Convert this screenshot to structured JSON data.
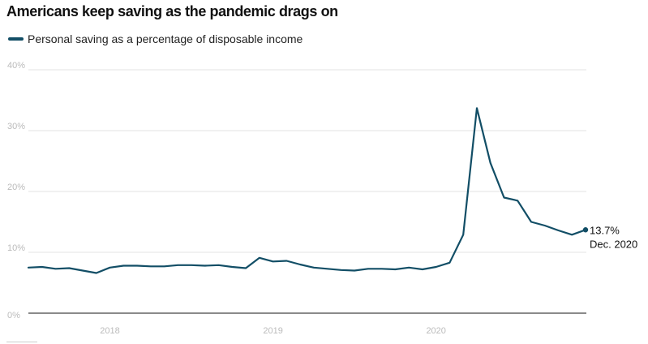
{
  "title": "Americans keep saving as the pandemic drags on",
  "legend": {
    "label": "Personal saving as a percentage of disposable income"
  },
  "colors": {
    "series": "#124e66",
    "grid": "#e3e3e3",
    "baseline": "#444444",
    "tick_text": "#bbbbbb"
  },
  "chart_data": {
    "type": "line",
    "title": "Americans keep saving as the pandemic drags on",
    "xlabel": "",
    "ylabel": "",
    "ylim": [
      0,
      40
    ],
    "xlim": [
      "2017-07",
      "2020-12"
    ],
    "yticks": [
      0,
      10,
      20,
      30,
      40
    ],
    "ytick_labels": [
      "0%",
      "10%",
      "20%",
      "30%",
      "40%"
    ],
    "xticks": [
      "2018-01",
      "2019-01",
      "2020-01"
    ],
    "xtick_labels": [
      "2018",
      "2019",
      "2020"
    ],
    "grid": true,
    "legend_position": "top-left",
    "series": [
      {
        "name": "Personal saving as a percentage of disposable income",
        "x": [
          "2017-07",
          "2017-08",
          "2017-09",
          "2017-10",
          "2017-11",
          "2017-12",
          "2018-01",
          "2018-02",
          "2018-03",
          "2018-04",
          "2018-05",
          "2018-06",
          "2018-07",
          "2018-08",
          "2018-09",
          "2018-10",
          "2018-11",
          "2018-12",
          "2019-01",
          "2019-02",
          "2019-03",
          "2019-04",
          "2019-05",
          "2019-06",
          "2019-07",
          "2019-08",
          "2019-09",
          "2019-10",
          "2019-11",
          "2019-12",
          "2020-01",
          "2020-02",
          "2020-03",
          "2020-04",
          "2020-05",
          "2020-06",
          "2020-07",
          "2020-08",
          "2020-09",
          "2020-10",
          "2020-11",
          "2020-12"
        ],
        "values": [
          7.5,
          7.6,
          7.3,
          7.4,
          7.0,
          6.6,
          7.5,
          7.8,
          7.8,
          7.7,
          7.7,
          7.9,
          7.9,
          7.8,
          7.9,
          7.6,
          7.4,
          9.1,
          8.5,
          8.6,
          8.0,
          7.5,
          7.3,
          7.1,
          7.0,
          7.3,
          7.3,
          7.2,
          7.5,
          7.2,
          7.6,
          8.3,
          12.9,
          33.7,
          24.7,
          19.0,
          18.5,
          15.0,
          14.4,
          13.6,
          12.9,
          13.7
        ]
      }
    ],
    "end_annotation": {
      "value_label": "13.7%",
      "date_label": "Dec. 2020"
    }
  }
}
